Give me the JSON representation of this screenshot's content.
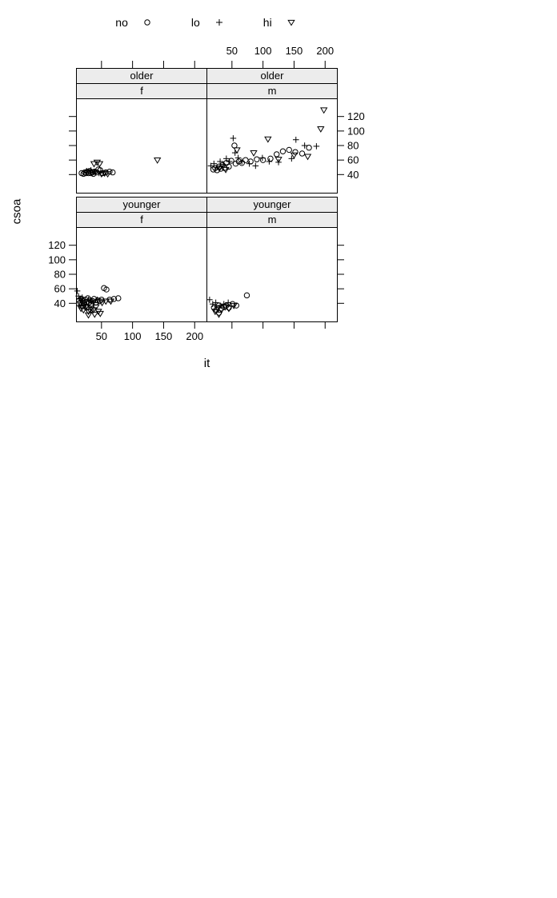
{
  "legend": {
    "items": [
      {
        "label": "no",
        "symbol": "circle"
      },
      {
        "label": "lo",
        "symbol": "plus"
      },
      {
        "label": "hi",
        "symbol": "triangle-down"
      }
    ]
  },
  "colors": {
    "stroke": "#000000",
    "strip_fill": "#ececec",
    "background": "#ffffff"
  },
  "chart_data": {
    "type": "scatter",
    "title": "",
    "xlabel": "it",
    "ylabel": "csoa",
    "xlim": [
      9,
      219
    ],
    "ylim": [
      15,
      145
    ],
    "x_ticks": [
      50,
      100,
      150,
      200
    ],
    "y_ticks": [
      40,
      60,
      80,
      100,
      120
    ],
    "grid": "off",
    "legend_position": "top",
    "groups": [
      "no",
      "lo",
      "hi"
    ],
    "panels": [
      {
        "grid": {
          "row": 0,
          "col": 0
        },
        "strips": [
          "older",
          "f"
        ],
        "series": [
          {
            "name": "no",
            "symbol": "circle",
            "points": [
              [
                18,
                42
              ],
              [
                21,
                41
              ],
              [
                23,
                43
              ],
              [
                25,
                42
              ],
              [
                27,
                44
              ],
              [
                29,
                42
              ],
              [
                31,
                45
              ],
              [
                33,
                42
              ],
              [
                35,
                43
              ],
              [
                37,
                41
              ],
              [
                39,
                44
              ],
              [
                42,
                43
              ],
              [
                45,
                47
              ],
              [
                48,
                46
              ],
              [
                52,
                42
              ],
              [
                57,
                43
              ],
              [
                63,
                44
              ],
              [
                68,
                43
              ]
            ]
          },
          {
            "name": "lo",
            "symbol": "plus",
            "points": [
              [
                26,
                45
              ],
              [
                33,
                46
              ],
              [
                40,
                44
              ],
              [
                46,
                42
              ]
            ]
          },
          {
            "name": "hi",
            "symbol": "triangle-down",
            "points": [
              [
                34,
                44
              ],
              [
                38,
                55
              ],
              [
                43,
                57
              ],
              [
                47,
                55
              ],
              [
                50,
                41
              ],
              [
                55,
                42
              ],
              [
                60,
                41
              ],
              [
                140,
                60
              ]
            ]
          }
        ]
      },
      {
        "grid": {
          "row": 0,
          "col": 1
        },
        "strips": [
          "older",
          "m"
        ],
        "series": [
          {
            "name": "no",
            "symbol": "circle",
            "points": [
              [
                20,
                47
              ],
              [
                23,
                49
              ],
              [
                26,
                46
              ],
              [
                29,
                51
              ],
              [
                32,
                48
              ],
              [
                35,
                53
              ],
              [
                38,
                49
              ],
              [
                41,
                56
              ],
              [
                45,
                51
              ],
              [
                49,
                59
              ],
              [
                54,
                80
              ],
              [
                56,
                55
              ],
              [
                61,
                58
              ],
              [
                66,
                56
              ],
              [
                72,
                60
              ],
              [
                80,
                58
              ],
              [
                90,
                61
              ],
              [
                100,
                60
              ],
              [
                112,
                62
              ],
              [
                122,
                68
              ],
              [
                132,
                72
              ],
              [
                142,
                74
              ],
              [
                152,
                71
              ],
              [
                163,
                69
              ],
              [
                174,
                77
              ]
            ]
          },
          {
            "name": "lo",
            "symbol": "plus",
            "points": [
              [
                16,
                52
              ],
              [
                21,
                55
              ],
              [
                26,
                50
              ],
              [
                31,
                58
              ],
              [
                36,
                54
              ],
              [
                41,
                62
              ],
              [
                46,
                58
              ],
              [
                52,
                90
              ],
              [
                55,
                70
              ],
              [
                60,
                63
              ],
              [
                66,
                58
              ],
              [
                78,
                55
              ],
              [
                88,
                52
              ],
              [
                99,
                63
              ],
              [
                110,
                58
              ],
              [
                125,
                57
              ],
              [
                146,
                62
              ],
              [
                153,
                88
              ],
              [
                167,
                80
              ],
              [
                186,
                79
              ]
            ]
          },
          {
            "name": "hi",
            "symbol": "triangle-down",
            "points": [
              [
                30,
                49
              ],
              [
                40,
                47
              ],
              [
                58,
                74
              ],
              [
                85,
                70
              ],
              [
                108,
                89
              ],
              [
                125,
                61
              ],
              [
                150,
                67
              ],
              [
                172,
                65
              ],
              [
                193,
                103
              ],
              [
                198,
                129
              ]
            ]
          }
        ]
      },
      {
        "grid": {
          "row": 1,
          "col": 0
        },
        "strips": [
          "younger",
          "f"
        ],
        "series": [
          {
            "name": "no",
            "symbol": "circle",
            "points": [
              [
                14,
                44
              ],
              [
                16,
                41
              ],
              [
                18,
                46
              ],
              [
                20,
                43
              ],
              [
                22,
                40
              ],
              [
                24,
                45
              ],
              [
                26,
                42
              ],
              [
                28,
                47
              ],
              [
                30,
                41
              ],
              [
                32,
                44
              ],
              [
                34,
                39
              ],
              [
                36,
                43
              ],
              [
                38,
                46
              ],
              [
                41,
                41
              ],
              [
                44,
                44
              ],
              [
                47,
                43
              ],
              [
                50,
                45
              ],
              [
                54,
                61
              ],
              [
                58,
                59
              ],
              [
                63,
                45
              ],
              [
                70,
                46
              ],
              [
                77,
                47
              ],
              [
                20,
                36
              ],
              [
                26,
                34
              ],
              [
                33,
                31
              ]
            ]
          },
          {
            "name": "lo",
            "symbol": "plus",
            "points": [
              [
                11,
                57
              ],
              [
                13,
                50
              ],
              [
                15,
                46
              ],
              [
                17,
                43
              ],
              [
                19,
                48
              ],
              [
                22,
                41
              ],
              [
                25,
                39
              ],
              [
                29,
                45
              ],
              [
                33,
                43
              ],
              [
                37,
                41
              ],
              [
                43,
                45
              ],
              [
                15,
                37
              ]
            ]
          },
          {
            "name": "hi",
            "symbol": "triangle-down",
            "points": [
              [
                17,
                33
              ],
              [
                21,
                31
              ],
              [
                25,
                35
              ],
              [
                29,
                29
              ],
              [
                33,
                33
              ],
              [
                37,
                31
              ],
              [
                41,
                35
              ],
              [
                45,
                29
              ],
              [
                51,
                41
              ],
              [
                57,
                43
              ],
              [
                65,
                43
              ],
              [
                29,
                24
              ],
              [
                39,
                25
              ],
              [
                48,
                26
              ]
            ]
          }
        ]
      },
      {
        "grid": {
          "row": 1,
          "col": 1
        },
        "strips": [
          "younger",
          "m"
        ],
        "series": [
          {
            "name": "no",
            "symbol": "circle",
            "points": [
              [
                21,
                34
              ],
              [
                25,
                31
              ],
              [
                29,
                37
              ],
              [
                33,
                33
              ],
              [
                37,
                35
              ],
              [
                41,
                37
              ],
              [
                45,
                34
              ],
              [
                51,
                39
              ],
              [
                57,
                37
              ],
              [
                74,
                51
              ],
              [
                29,
                27
              ]
            ]
          },
          {
            "name": "lo",
            "symbol": "plus",
            "points": [
              [
                14,
                45
              ],
              [
                19,
                39
              ],
              [
                24,
                41
              ],
              [
                31,
                37
              ],
              [
                37,
                39
              ],
              [
                44,
                41
              ]
            ]
          },
          {
            "name": "hi",
            "symbol": "triangle-down",
            "points": [
              [
                23,
                29
              ],
              [
                27,
                33
              ],
              [
                33,
                31
              ],
              [
                39,
                35
              ],
              [
                45,
                33
              ],
              [
                53,
                37
              ],
              [
                29,
                25
              ]
            ]
          }
        ]
      }
    ]
  }
}
